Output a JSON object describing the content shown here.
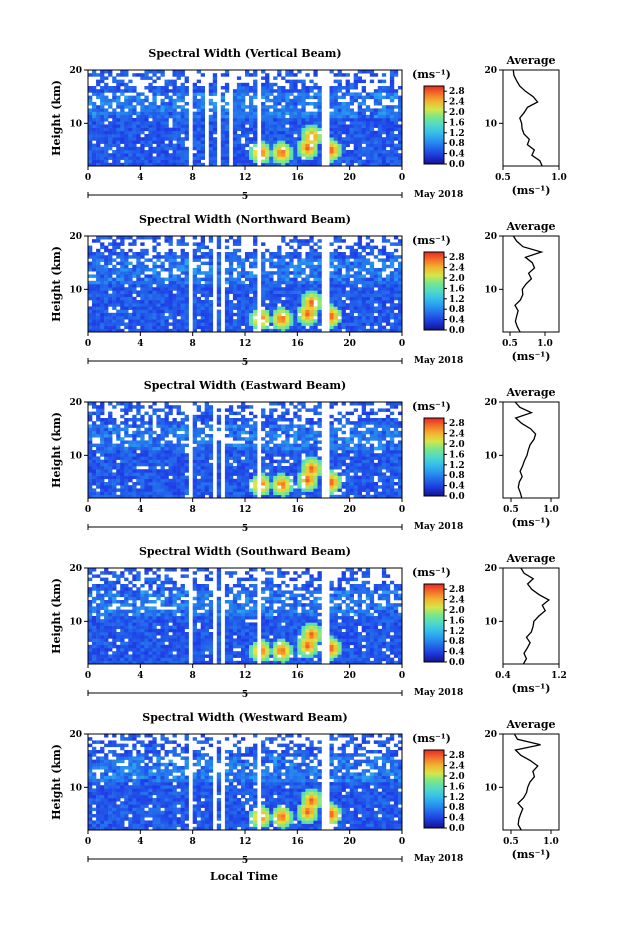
{
  "figure": {
    "xlabel": "Local Time",
    "date_label": "May 2018",
    "date_marker": "5",
    "colorbar_unit": "(ms⁻¹)",
    "avg_xlabel": "(ms⁻¹)"
  },
  "chart_data": [
    {
      "type": "heatmap",
      "title": "Spectral Width (Vertical Beam)",
      "ylabel": "Height (km)",
      "xlabel": "Local Time",
      "x_ticks": [
        "0",
        "4",
        "8",
        "12",
        "16",
        "20",
        "0"
      ],
      "xlim": [
        0,
        24
      ],
      "y_ticks": [
        "10",
        "20"
      ],
      "ylim": [
        2,
        20
      ],
      "colorbar": {
        "unit": "(ms⁻¹)",
        "ticks": [
          "0.0",
          "0.4",
          "0.8",
          "1.2",
          "1.6",
          "2.0",
          "2.4",
          "2.8"
        ],
        "range": [
          0,
          3.0
        ]
      },
      "gaps_hours": [
        [
          5.8,
          6.0
        ],
        [
          7.8,
          8.0
        ],
        [
          8.9,
          9.1
        ],
        [
          9.8,
          10.1
        ],
        [
          10.9,
          11.1
        ],
        [
          12.8,
          13.1
        ],
        [
          17.7,
          18.4
        ]
      ],
      "high_spots": [
        [
          13.2,
          4.5
        ],
        [
          14.8,
          4.5
        ],
        [
          16.8,
          5.5
        ],
        [
          17.1,
          7.5
        ],
        [
          18.6,
          5
        ]
      ],
      "average": {
        "title": "Average",
        "x_ticks": [
          "0.5",
          "1.0"
        ],
        "xlim": [
          0.5,
          1.0
        ],
        "y_ticks": [
          "10",
          "20"
        ],
        "ylim": [
          2,
          20
        ],
        "profile": [
          [
            2,
            0.85
          ],
          [
            3,
            0.82
          ],
          [
            4,
            0.75
          ],
          [
            5,
            0.77
          ],
          [
            6,
            0.72
          ],
          [
            7,
            0.74
          ],
          [
            8,
            0.7
          ],
          [
            9,
            0.68
          ],
          [
            10,
            0.66
          ],
          [
            11,
            0.65
          ],
          [
            12,
            0.7
          ],
          [
            13,
            0.72
          ],
          [
            14,
            0.8
          ],
          [
            15,
            0.78
          ],
          [
            16,
            0.7
          ],
          [
            17,
            0.66
          ],
          [
            18,
            0.62
          ],
          [
            19,
            0.6
          ],
          [
            20,
            0.58
          ]
        ]
      }
    },
    {
      "type": "heatmap",
      "title": "Spectral Width (Northward Beam)",
      "ylabel": "Height (km)",
      "xlabel": "Local Time",
      "x_ticks": [
        "0",
        "4",
        "8",
        "12",
        "16",
        "20",
        "0"
      ],
      "xlim": [
        0,
        24
      ],
      "y_ticks": [
        "10",
        "20"
      ],
      "ylim": [
        2,
        20
      ],
      "colorbar": {
        "unit": "(ms⁻¹)",
        "ticks": [
          "0.0",
          "0.4",
          "0.8",
          "1.2",
          "1.6",
          "2.0",
          "2.4",
          "2.8"
        ],
        "range": [
          0,
          3.0
        ]
      },
      "gaps_hours": [
        [
          5.8,
          6.0
        ],
        [
          7.8,
          8.0
        ],
        [
          9.5,
          9.7
        ],
        [
          10.3,
          10.5
        ],
        [
          12.8,
          13.1
        ],
        [
          17.7,
          18.4
        ]
      ],
      "high_spots": [
        [
          13.2,
          4.5
        ],
        [
          14.8,
          4.5
        ],
        [
          16.8,
          5.5
        ],
        [
          17.1,
          7.5
        ],
        [
          18.6,
          5
        ]
      ],
      "average": {
        "title": "Average",
        "x_ticks": [
          "0.5",
          "1.0"
        ],
        "xlim": [
          0.4,
          1.2
        ],
        "y_ticks": [
          "10",
          "20"
        ],
        "ylim": [
          2,
          20
        ],
        "profile": [
          [
            2,
            0.65
          ],
          [
            3,
            0.62
          ],
          [
            4,
            0.58
          ],
          [
            5,
            0.6
          ],
          [
            6,
            0.62
          ],
          [
            7,
            0.58
          ],
          [
            8,
            0.65
          ],
          [
            9,
            0.7
          ],
          [
            10,
            0.68
          ],
          [
            11,
            0.75
          ],
          [
            12,
            0.8
          ],
          [
            13,
            0.78
          ],
          [
            14,
            0.85
          ],
          [
            15,
            0.82
          ],
          [
            16,
            0.7
          ],
          [
            17,
            0.95
          ],
          [
            18,
            0.7
          ],
          [
            19,
            0.6
          ],
          [
            20,
            0.55
          ]
        ]
      }
    },
    {
      "type": "heatmap",
      "title": "Spectral Width (Eastward Beam)",
      "ylabel": "Height (km)",
      "xlabel": "Local Time",
      "x_ticks": [
        "0",
        "4",
        "8",
        "12",
        "16",
        "20",
        "0"
      ],
      "xlim": [
        0,
        24
      ],
      "y_ticks": [
        "10",
        "20"
      ],
      "ylim": [
        2,
        20
      ],
      "colorbar": {
        "unit": "(ms⁻¹)",
        "ticks": [
          "0.0",
          "0.4",
          "0.8",
          "1.2",
          "1.6",
          "2.0",
          "2.4",
          "2.8"
        ],
        "range": [
          0,
          3.0
        ]
      },
      "gaps_hours": [
        [
          5.8,
          6.0
        ],
        [
          7.8,
          8.0
        ],
        [
          9.5,
          9.7
        ],
        [
          10.3,
          10.5
        ],
        [
          12.8,
          13.1
        ],
        [
          17.7,
          18.4
        ]
      ],
      "high_spots": [
        [
          13.2,
          4.5
        ],
        [
          14.8,
          4.5
        ],
        [
          16.8,
          5.5
        ],
        [
          17.1,
          7.5
        ],
        [
          18.6,
          5
        ]
      ],
      "average": {
        "title": "Average",
        "x_ticks": [
          "0.5",
          "1.0"
        ],
        "xlim": [
          0.4,
          1.1
        ],
        "y_ticks": [
          "10",
          "20"
        ],
        "ylim": [
          2,
          20
        ],
        "profile": [
          [
            2,
            0.62
          ],
          [
            3,
            0.6
          ],
          [
            4,
            0.58
          ],
          [
            5,
            0.62
          ],
          [
            6,
            0.65
          ],
          [
            7,
            0.6
          ],
          [
            8,
            0.66
          ],
          [
            9,
            0.68
          ],
          [
            10,
            0.7
          ],
          [
            11,
            0.72
          ],
          [
            12,
            0.75
          ],
          [
            13,
            0.78
          ],
          [
            14,
            0.8
          ],
          [
            15,
            0.74
          ],
          [
            16,
            0.62
          ],
          [
            17,
            0.55
          ],
          [
            18,
            0.75
          ],
          [
            19,
            0.6
          ],
          [
            20,
            0.55
          ]
        ]
      }
    },
    {
      "type": "heatmap",
      "title": "Spectral Width (Southward Beam)",
      "ylabel": "Height (km)",
      "xlabel": "Local Time",
      "x_ticks": [
        "0",
        "4",
        "8",
        "12",
        "16",
        "20",
        "0"
      ],
      "xlim": [
        0,
        24
      ],
      "y_ticks": [
        "10",
        "20"
      ],
      "ylim": [
        2,
        20
      ],
      "colorbar": {
        "unit": "(ms⁻¹)",
        "ticks": [
          "0.0",
          "0.4",
          "0.8",
          "1.2",
          "1.6",
          "2.0",
          "2.4",
          "2.8"
        ],
        "range": [
          0,
          3.0
        ]
      },
      "gaps_hours": [
        [
          5.8,
          6.0
        ],
        [
          7.8,
          8.0
        ],
        [
          9.5,
          9.7
        ],
        [
          10.3,
          10.5
        ],
        [
          12.8,
          13.1
        ],
        [
          17.7,
          18.4
        ]
      ],
      "high_spots": [
        [
          13.2,
          4.5
        ],
        [
          14.8,
          4.5
        ],
        [
          16.8,
          5.5
        ],
        [
          17.1,
          7.5
        ],
        [
          18.6,
          5
        ]
      ],
      "average": {
        "title": "Average",
        "x_ticks": [
          "0.4",
          "1.2"
        ],
        "xlim": [
          0.4,
          1.2
        ],
        "y_ticks": [
          "10",
          "20"
        ],
        "ylim": [
          2,
          20
        ],
        "profile": [
          [
            2,
            0.7
          ],
          [
            3,
            0.72
          ],
          [
            4,
            0.68
          ],
          [
            5,
            0.75
          ],
          [
            6,
            0.78
          ],
          [
            7,
            0.72
          ],
          [
            8,
            0.8
          ],
          [
            9,
            0.82
          ],
          [
            10,
            0.85
          ],
          [
            11,
            0.9
          ],
          [
            12,
            1.0
          ],
          [
            13,
            0.95
          ],
          [
            14,
            1.05
          ],
          [
            15,
            0.9
          ],
          [
            16,
            0.8
          ],
          [
            17,
            0.75
          ],
          [
            18,
            0.85
          ],
          [
            19,
            0.7
          ],
          [
            20,
            0.65
          ]
        ]
      }
    },
    {
      "type": "heatmap",
      "title": "Spectral Width (Westward Beam)",
      "ylabel": "Height (km)",
      "xlabel": "Local Time",
      "x_ticks": [
        "0",
        "4",
        "8",
        "12",
        "16",
        "20",
        "0"
      ],
      "xlim": [
        0,
        24
      ],
      "y_ticks": [
        "10",
        "20"
      ],
      "ylim": [
        2,
        20
      ],
      "colorbar": {
        "unit": "(ms⁻¹)",
        "ticks": [
          "0.0",
          "0.4",
          "0.8",
          "1.2",
          "1.6",
          "2.0",
          "2.4",
          "2.8"
        ],
        "range": [
          0,
          3.0
        ]
      },
      "gaps_hours": [
        [
          5.8,
          6.0
        ],
        [
          7.8,
          8.0
        ],
        [
          9.5,
          9.7
        ],
        [
          10.3,
          10.5
        ],
        [
          12.8,
          13.1
        ],
        [
          17.7,
          18.4
        ]
      ],
      "high_spots": [
        [
          13.2,
          4.5
        ],
        [
          14.8,
          4.5
        ],
        [
          16.8,
          5.5
        ],
        [
          17.1,
          7.5
        ],
        [
          18.6,
          5
        ]
      ],
      "average": {
        "title": "Average",
        "x_ticks": [
          "0.5",
          "1.0"
        ],
        "xlim": [
          0.4,
          1.1
        ],
        "y_ticks": [
          "10",
          "20"
        ],
        "ylim": [
          2,
          20
        ],
        "profile": [
          [
            2,
            0.62
          ],
          [
            3,
            0.6
          ],
          [
            4,
            0.58
          ],
          [
            5,
            0.62
          ],
          [
            6,
            0.66
          ],
          [
            7,
            0.6
          ],
          [
            8,
            0.64
          ],
          [
            9,
            0.68
          ],
          [
            10,
            0.72
          ],
          [
            11,
            0.74
          ],
          [
            12,
            0.78
          ],
          [
            13,
            0.76
          ],
          [
            14,
            0.82
          ],
          [
            15,
            0.75
          ],
          [
            16,
            0.62
          ],
          [
            17,
            0.56
          ],
          [
            18,
            0.88
          ],
          [
            19,
            0.6
          ],
          [
            20,
            0.55
          ]
        ]
      }
    }
  ]
}
